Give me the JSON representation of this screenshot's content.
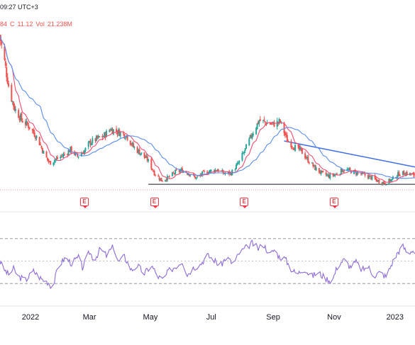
{
  "header": {
    "time": "09:27 UTC+3",
    "open_fragment": "84",
    "close_label": "C",
    "close_value": "11.12",
    "vol_label": "Vol",
    "vol_value": "21.238M"
  },
  "earnings_marker": {
    "label": "E"
  },
  "colors": {
    "bull": "#26a69a",
    "bear": "#ef5350",
    "ma_fast": "#ef4d71",
    "ma_slow": "#5b8def",
    "trendline": "#3d6ee8",
    "support": "#131722",
    "rsi": "#8e6bd6",
    "band_line": "#9598a1",
    "divider": "#e0e3eb"
  },
  "chart_data": {
    "type": "candlestick",
    "x_tick_labels": [
      "2022",
      "Mar",
      "May",
      "Jul",
      "Sep",
      "Nov",
      "2023"
    ],
    "price_seed": [
      [
        "2021-12-01",
        33.0
      ],
      [
        "2021-12-06",
        29.0
      ],
      [
        "2021-12-11",
        24.5
      ],
      [
        "2021-12-16",
        22.0
      ],
      [
        "2021-12-23",
        20.3
      ],
      [
        "2021-12-31",
        19.2
      ],
      [
        "2022-01-08",
        17.5
      ],
      [
        "2022-01-15",
        15.0
      ],
      [
        "2022-01-20",
        13.8
      ],
      [
        "2022-01-27",
        14.4
      ],
      [
        "2022-02-03",
        15.0
      ],
      [
        "2022-02-10",
        15.8
      ],
      [
        "2022-02-17",
        14.8
      ],
      [
        "2022-02-24",
        15.6
      ],
      [
        "2022-03-01",
        16.8
      ],
      [
        "2022-03-08",
        17.4
      ],
      [
        "2022-03-15",
        17.8
      ],
      [
        "2022-03-22",
        18.9
      ],
      [
        "2022-03-29",
        18.5
      ],
      [
        "2022-04-07",
        17.9
      ],
      [
        "2022-04-14",
        16.2
      ],
      [
        "2022-04-21",
        15.3
      ],
      [
        "2022-04-28",
        14.3
      ],
      [
        "2022-05-05",
        12.3
      ],
      [
        "2022-05-12",
        11.2
      ],
      [
        "2022-05-19",
        11.6
      ],
      [
        "2022-05-26",
        12.4
      ],
      [
        "2022-06-02",
        12.7
      ],
      [
        "2022-06-09",
        12.2
      ],
      [
        "2022-06-16",
        11.5
      ],
      [
        "2022-06-23",
        12.3
      ],
      [
        "2022-06-30",
        12.6
      ],
      [
        "2022-07-07",
        12.8
      ],
      [
        "2022-07-14",
        12.2
      ],
      [
        "2022-07-21",
        12.3
      ],
      [
        "2022-07-28",
        13.7
      ],
      [
        "2022-08-04",
        15.8
      ],
      [
        "2022-08-11",
        18.2
      ],
      [
        "2022-08-18",
        20.2
      ],
      [
        "2022-08-25",
        19.8
      ],
      [
        "2022-09-01",
        19.6
      ],
      [
        "2022-09-08",
        20.0
      ],
      [
        "2022-09-15",
        17.2
      ],
      [
        "2022-09-22",
        16.2
      ],
      [
        "2022-09-29",
        15.6
      ],
      [
        "2022-10-06",
        14.2
      ],
      [
        "2022-10-13",
        13.0
      ],
      [
        "2022-10-20",
        12.2
      ],
      [
        "2022-10-27",
        11.8
      ],
      [
        "2022-11-03",
        12.1
      ],
      [
        "2022-11-10",
        12.8
      ],
      [
        "2022-11-17",
        12.6
      ],
      [
        "2022-11-24",
        12.3
      ],
      [
        "2022-12-01",
        12.0
      ],
      [
        "2022-12-08",
        11.6
      ],
      [
        "2022-12-15",
        11.1
      ],
      [
        "2022-12-22",
        10.8
      ],
      [
        "2022-12-29",
        11.3
      ],
      [
        "2023-01-05",
        12.2
      ],
      [
        "2023-01-12",
        12.3
      ],
      [
        "2023-01-19",
        12.0
      ],
      [
        "2023-01-24",
        11.1
      ]
    ],
    "rsi_seed": [
      [
        "2021-12-01",
        52
      ],
      [
        "2021-12-04",
        44
      ],
      [
        "2021-12-10",
        38
      ],
      [
        "2021-12-15",
        43
      ],
      [
        "2021-12-20",
        36
      ],
      [
        "2021-12-27",
        33
      ],
      [
        "2022-01-04",
        41
      ],
      [
        "2022-01-12",
        34
      ],
      [
        "2022-01-19",
        31
      ],
      [
        "2022-01-23",
        26
      ],
      [
        "2022-01-29",
        46
      ],
      [
        "2022-02-05",
        53
      ],
      [
        "2022-02-11",
        48
      ],
      [
        "2022-02-18",
        53
      ],
      [
        "2022-02-22",
        44
      ],
      [
        "2022-03-01",
        58
      ],
      [
        "2022-03-06",
        51
      ],
      [
        "2022-03-12",
        61
      ],
      [
        "2022-03-18",
        55
      ],
      [
        "2022-03-25",
        63
      ],
      [
        "2022-03-30",
        49
      ],
      [
        "2022-04-05",
        54
      ],
      [
        "2022-04-12",
        42
      ],
      [
        "2022-04-18",
        46
      ],
      [
        "2022-04-25",
        39
      ],
      [
        "2022-05-02",
        46
      ],
      [
        "2022-05-09",
        36
      ],
      [
        "2022-05-14",
        33
      ],
      [
        "2022-05-19",
        41
      ],
      [
        "2022-05-26",
        45
      ],
      [
        "2022-06-02",
        50
      ],
      [
        "2022-06-07",
        38
      ],
      [
        "2022-06-13",
        44
      ],
      [
        "2022-06-20",
        47
      ],
      [
        "2022-06-27",
        55
      ],
      [
        "2022-07-04",
        51
      ],
      [
        "2022-07-10",
        45
      ],
      [
        "2022-07-16",
        54
      ],
      [
        "2022-07-23",
        47
      ],
      [
        "2022-07-29",
        57
      ],
      [
        "2022-08-05",
        62
      ],
      [
        "2022-08-11",
        66
      ],
      [
        "2022-08-17",
        61
      ],
      [
        "2022-08-22",
        65
      ],
      [
        "2022-08-29",
        56
      ],
      [
        "2022-09-02",
        60
      ],
      [
        "2022-09-07",
        54
      ],
      [
        "2022-09-13",
        52
      ],
      [
        "2022-09-19",
        43
      ],
      [
        "2022-09-25",
        38
      ],
      [
        "2022-10-02",
        44
      ],
      [
        "2022-10-09",
        36
      ],
      [
        "2022-10-16",
        40
      ],
      [
        "2022-10-23",
        35
      ],
      [
        "2022-10-30",
        32
      ],
      [
        "2022-11-05",
        47
      ],
      [
        "2022-11-11",
        51
      ],
      [
        "2022-11-17",
        45
      ],
      [
        "2022-11-23",
        49
      ],
      [
        "2022-11-29",
        42
      ],
      [
        "2022-12-05",
        45
      ],
      [
        "2022-12-11",
        37
      ],
      [
        "2022-12-17",
        40
      ],
      [
        "2022-12-23",
        36
      ],
      [
        "2022-12-29",
        48
      ],
      [
        "2023-01-04",
        58
      ],
      [
        "2023-01-09",
        63
      ],
      [
        "2023-01-14",
        56
      ],
      [
        "2023-01-18",
        60
      ],
      [
        "2023-01-24",
        55
      ]
    ],
    "rsi_bands": [
      70,
      30
    ],
    "series": [
      {
        "kind": "sma",
        "period": 10
      },
      {
        "kind": "sma",
        "period": 30
      }
    ],
    "trendline": [
      [
        "2022-09-12",
        17.1
      ],
      [
        "2023-01-24",
        13.1
      ]
    ],
    "support_level": {
      "value": 10.6,
      "from": "2022-04-29",
      "to": "2023-01-24"
    },
    "earnings_dates": [
      "2022-02-24",
      "2022-05-05",
      "2022-08-03",
      "2022-11-01"
    ],
    "price_range": [
      10.4,
      34.0
    ],
    "rsi_range": [
      15,
      85
    ]
  }
}
